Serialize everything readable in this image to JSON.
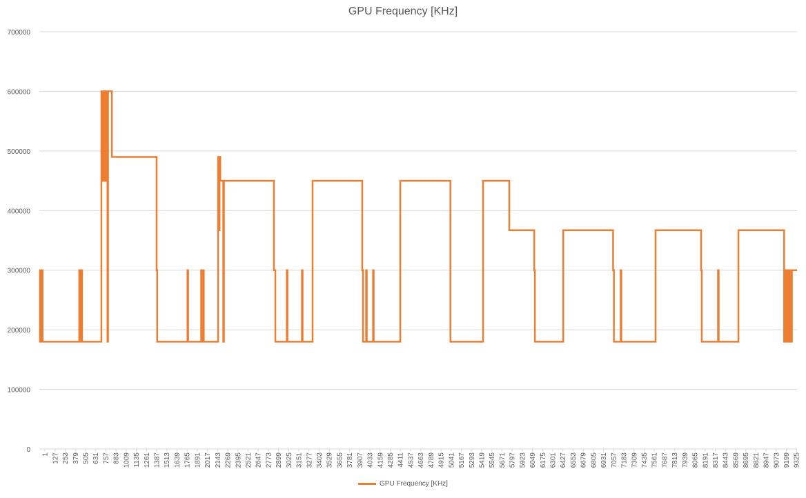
{
  "chart_data": {
    "type": "line",
    "title": "GPU Frequency [KHz]",
    "xlabel": "",
    "ylabel": "",
    "ylim": [
      0,
      700000
    ],
    "y_ticks": [
      0,
      100000,
      200000,
      300000,
      400000,
      500000,
      600000,
      700000
    ],
    "x_range": [
      1,
      9400
    ],
    "x_tick_start": 1,
    "x_tick_step": 126,
    "x_tick_count": 75,
    "grid": true,
    "legend_position": "bottom",
    "series": [
      {
        "name": "GPU Frequency [KHz]",
        "color": "#ED7D31",
        "step_points": [
          [
            0,
            300000
          ],
          [
            8,
            180000
          ],
          [
            12,
            300000
          ],
          [
            18,
            180000
          ],
          [
            22,
            300000
          ],
          [
            28,
            180000
          ],
          [
            32,
            300000
          ],
          [
            40,
            180000
          ],
          [
            495,
            300000
          ],
          [
            502,
            180000
          ],
          [
            508,
            300000
          ],
          [
            515,
            180000
          ],
          [
            522,
            300000
          ],
          [
            530,
            180000
          ],
          [
            770,
            600000
          ],
          [
            776,
            450000
          ],
          [
            782,
            600000
          ],
          [
            790,
            450000
          ],
          [
            796,
            600000
          ],
          [
            804,
            450000
          ],
          [
            810,
            600000
          ],
          [
            818,
            450000
          ],
          [
            824,
            600000
          ],
          [
            845,
            180000
          ],
          [
            852,
            600000
          ],
          [
            900,
            490000
          ],
          [
            1455,
            300000
          ],
          [
            1462,
            180000
          ],
          [
            1838,
            300000
          ],
          [
            1846,
            180000
          ],
          [
            2008,
            300000
          ],
          [
            2016,
            180000
          ],
          [
            2030,
            300000
          ],
          [
            2040,
            180000
          ],
          [
            2218,
            490000
          ],
          [
            2232,
            367000
          ],
          [
            2236,
            490000
          ],
          [
            2245,
            450000
          ],
          [
            2282,
            180000
          ],
          [
            2290,
            450000
          ],
          [
            2910,
            300000
          ],
          [
            2928,
            180000
          ],
          [
            3070,
            300000
          ],
          [
            3078,
            180000
          ],
          [
            3258,
            300000
          ],
          [
            3266,
            180000
          ],
          [
            3390,
            450000
          ],
          [
            4006,
            300000
          ],
          [
            4016,
            180000
          ],
          [
            4054,
            300000
          ],
          [
            4062,
            180000
          ],
          [
            4140,
            300000
          ],
          [
            4148,
            180000
          ],
          [
            4478,
            450000
          ],
          [
            5100,
            180000
          ],
          [
            5505,
            450000
          ],
          [
            5830,
            367000
          ],
          [
            6140,
            300000
          ],
          [
            6148,
            180000
          ],
          [
            6500,
            367000
          ],
          [
            7118,
            300000
          ],
          [
            7128,
            180000
          ],
          [
            7212,
            300000
          ],
          [
            7220,
            180000
          ],
          [
            7645,
            367000
          ],
          [
            8210,
            300000
          ],
          [
            8218,
            180000
          ],
          [
            8420,
            300000
          ],
          [
            8428,
            180000
          ],
          [
            8673,
            367000
          ],
          [
            9240,
            180000
          ],
          [
            9246,
            300000
          ],
          [
            9252,
            180000
          ],
          [
            9258,
            300000
          ],
          [
            9264,
            180000
          ],
          [
            9270,
            300000
          ],
          [
            9276,
            180000
          ],
          [
            9282,
            300000
          ],
          [
            9290,
            180000
          ],
          [
            9310,
            300000
          ],
          [
            9330,
            180000
          ],
          [
            9336,
            300000
          ],
          [
            9400,
            300000
          ]
        ]
      }
    ]
  }
}
